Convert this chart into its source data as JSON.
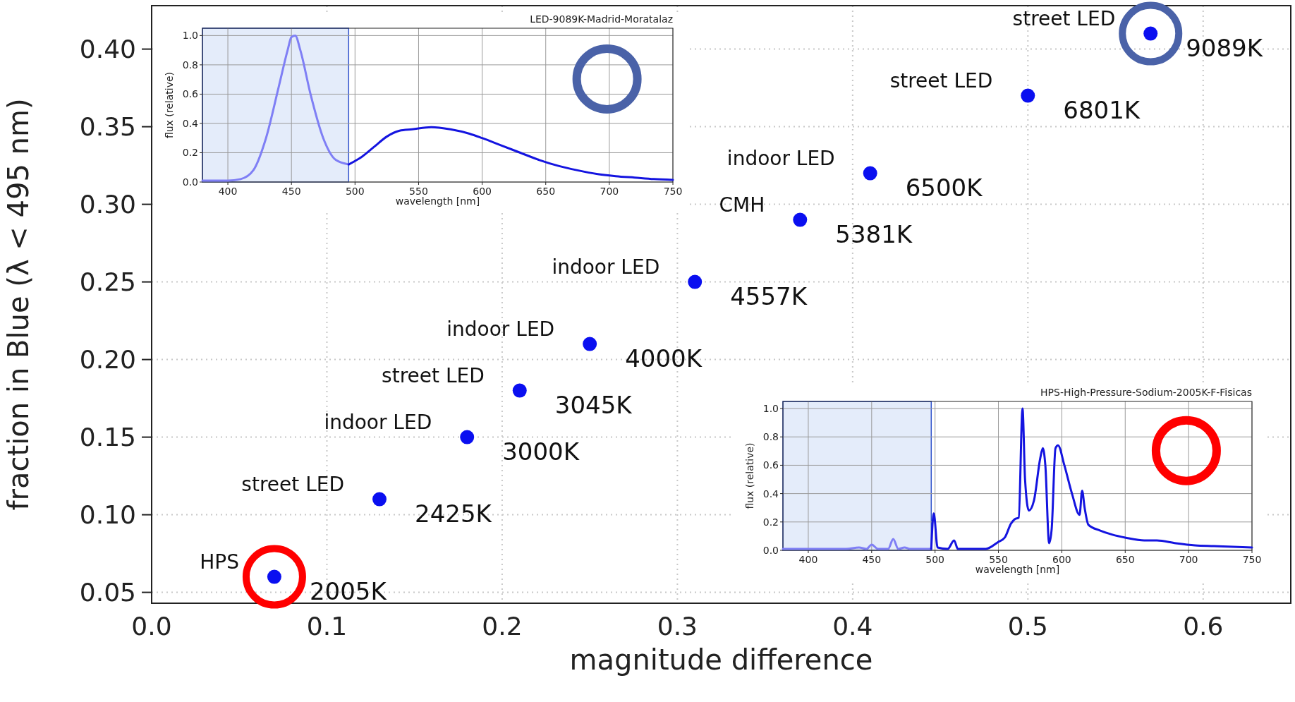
{
  "chart_data": [
    {
      "type": "scatter",
      "xlabel": "magnitude difference",
      "ylabel": "fraction in Blue (λ < 495 nm)",
      "x": [
        0.07,
        0.13,
        0.18,
        0.21,
        0.25,
        0.31,
        0.37,
        0.41,
        0.5,
        0.57
      ],
      "values": [
        0.06,
        0.11,
        0.15,
        0.18,
        0.21,
        0.25,
        0.29,
        0.32,
        0.37,
        0.41
      ],
      "color": "#0a0ff0",
      "marker": "circle",
      "xlim": [
        0,
        0.65
      ],
      "ylim": [
        0.043,
        0.428
      ],
      "xticks": [
        {
          "value": 0,
          "label": "0.0"
        },
        0.1,
        0.2,
        0.3,
        0.4,
        0.5,
        0.6
      ],
      "yticks": [
        0.05,
        {
          "value": 0.1,
          "label": "0.10"
        },
        0.15,
        {
          "value": 0.2,
          "label": "0.20"
        },
        0.25,
        {
          "value": 0.3,
          "label": "0.30"
        },
        0.35,
        {
          "value": 0.4,
          "label": "0.40"
        }
      ],
      "grid": true,
      "annotations": [
        {
          "text": "HPS",
          "x": 0.07,
          "y": 0.06
        },
        {
          "text": "2005K",
          "x": 0.07,
          "y": 0.06
        },
        {
          "text": "street LED",
          "x": 0.13,
          "y": 0.11
        },
        {
          "text": "2425K",
          "x": 0.13,
          "y": 0.11
        },
        {
          "text": "indoor LED",
          "x": 0.18,
          "y": 0.15
        },
        {
          "text": "3000K",
          "x": 0.18,
          "y": 0.15
        },
        {
          "text": "street LED",
          "x": 0.21,
          "y": 0.18
        },
        {
          "text": "3045K",
          "x": 0.21,
          "y": 0.18
        },
        {
          "text": "indoor LED",
          "x": 0.25,
          "y": 0.21
        },
        {
          "text": "4000K",
          "x": 0.25,
          "y": 0.21
        },
        {
          "text": "indoor LED",
          "x": 0.31,
          "y": 0.25
        },
        {
          "text": "4557K",
          "x": 0.31,
          "y": 0.25
        },
        {
          "text": "CMH",
          "x": 0.37,
          "y": 0.29
        },
        {
          "text": "5381K",
          "x": 0.37,
          "y": 0.29
        },
        {
          "text": "indoor LED",
          "x": 0.41,
          "y": 0.32
        },
        {
          "text": "6500K",
          "x": 0.41,
          "y": 0.32
        },
        {
          "text": "street LED",
          "x": 0.5,
          "y": 0.37
        },
        {
          "text": "6801K",
          "x": 0.5,
          "y": 0.37
        },
        {
          "text": "street LED",
          "x": 0.57,
          "y": 0.41
        },
        {
          "text": "9089K",
          "x": 0.57,
          "y": 0.41
        }
      ]
    },
    {
      "type": "line",
      "title": "LED-9089K-Madrid-Moratalaz",
      "xlabel": "wavelength [nm]",
      "ylabel": "flux (relative)",
      "series": [
        {
          "color": "#7f7ff5",
          "x": [
            380,
            400,
            410,
            420,
            430,
            440,
            447,
            450,
            453,
            457,
            465,
            475,
            485,
            495
          ],
          "values": [
            0.01,
            0.01,
            0.02,
            0.08,
            0.3,
            0.65,
            0.9,
            0.99,
            1.0,
            0.9,
            0.6,
            0.3,
            0.15,
            0.12
          ]
        },
        {
          "color": "#1414e0",
          "x": [
            495,
            505,
            515,
            525,
            535,
            545,
            560,
            575,
            590,
            600,
            615,
            630,
            645,
            660,
            675,
            690,
            705,
            720,
            735,
            750
          ],
          "values": [
            0.12,
            0.17,
            0.24,
            0.31,
            0.35,
            0.36,
            0.375,
            0.36,
            0.33,
            0.3,
            0.25,
            0.2,
            0.15,
            0.11,
            0.08,
            0.055,
            0.04,
            0.03,
            0.02,
            0.015
          ]
        }
      ],
      "xlim": [
        380,
        750
      ],
      "ylim": [
        0,
        1.05
      ],
      "xticks": [
        400,
        450,
        500,
        550,
        600,
        650,
        700,
        750
      ],
      "yticks": [
        {
          "value": 0,
          "label": "0.0"
        },
        0.2,
        0.4,
        0.6,
        0.8,
        {
          "value": 1,
          "label": "1.0"
        }
      ],
      "grid": true,
      "bands": [
        {
          "axis": "x",
          "from": 380,
          "to": 495,
          "color": "#e4ecfa"
        }
      ]
    },
    {
      "type": "line",
      "title": "HPS-High-Pressure-Sodium-2005K-F-Fisicas",
      "xlabel": "wavelength [nm]",
      "ylabel": "flux (relative)",
      "series": [
        {
          "color": "#7f7ff5",
          "x": [
            380,
            430,
            440,
            446,
            450,
            455,
            463,
            467,
            471,
            476,
            480,
            497
          ],
          "values": [
            0.01,
            0.01,
            0.02,
            0.01,
            0.04,
            0.01,
            0.01,
            0.08,
            0.01,
            0.02,
            0.01,
            0.01
          ]
        },
        {
          "color": "#1414e0",
          "x": [
            497,
            499,
            502,
            510,
            515,
            518,
            540,
            550,
            555,
            560,
            563,
            566,
            569,
            571,
            574,
            578,
            583,
            585,
            587,
            590,
            592,
            595,
            597,
            602,
            608,
            614,
            616,
            618,
            621,
            630,
            640,
            650,
            665,
            675,
            690,
            705,
            720,
            735,
            750
          ],
          "values": [
            0.01,
            0.26,
            0.02,
            0.01,
            0.07,
            0.01,
            0.01,
            0.06,
            0.09,
            0.19,
            0.22,
            0.23,
            1.0,
            0.5,
            0.28,
            0.35,
            0.65,
            0.72,
            0.6,
            0.05,
            0.15,
            0.72,
            0.74,
            0.6,
            0.4,
            0.25,
            0.42,
            0.3,
            0.18,
            0.14,
            0.11,
            0.09,
            0.07,
            0.07,
            0.05,
            0.035,
            0.03,
            0.025,
            0.02
          ]
        }
      ],
      "xlim": [
        380,
        750
      ],
      "ylim": [
        0,
        1.05
      ],
      "xticks": [
        400,
        450,
        500,
        550,
        600,
        650,
        700,
        750
      ],
      "yticks": [
        {
          "value": 0,
          "label": "0.0"
        },
        0.2,
        0.4,
        0.6,
        0.8,
        {
          "value": 1,
          "label": "1.0"
        }
      ],
      "grid": true,
      "bands": [
        {
          "axis": "x",
          "from": 380,
          "to": 497,
          "color": "#e4ecfa"
        }
      ]
    }
  ]
}
